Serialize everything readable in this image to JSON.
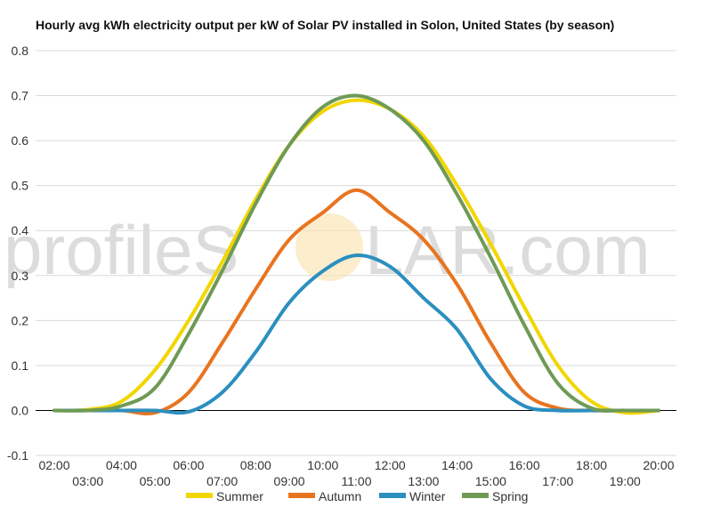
{
  "watermark": {
    "left_text": "profileS",
    "right_text": "LAR.com"
  },
  "chart_data": {
    "type": "line",
    "title": "Hourly avg kWh electricity output per kW of Solar PV installed in Solon, United States (by season)",
    "xlabel": "",
    "ylabel": "",
    "ylim": [
      -0.1,
      0.8
    ],
    "yticks": [
      "-0.1",
      "0.0",
      "0.1",
      "0.2",
      "0.3",
      "0.4",
      "0.5",
      "0.6",
      "0.7",
      "0.8"
    ],
    "x": [
      "02:00",
      "03:00",
      "04:00",
      "05:00",
      "06:00",
      "07:00",
      "08:00",
      "09:00",
      "10:00",
      "11:00",
      "12:00",
      "13:00",
      "14:00",
      "15:00",
      "16:00",
      "17:00",
      "18:00",
      "19:00",
      "20:00"
    ],
    "grid": true,
    "legend_position": "bottom",
    "series": [
      {
        "name": "Summer",
        "color": "#f2d600",
        "values": [
          0,
          0.002,
          0.02,
          0.09,
          0.2,
          0.33,
          0.47,
          0.59,
          0.665,
          0.69,
          0.67,
          0.61,
          0.5,
          0.37,
          0.23,
          0.1,
          0.02,
          -0.005,
          0
        ]
      },
      {
        "name": "Autumn",
        "color": "#e8741f",
        "values": [
          0,
          0,
          0,
          -0.005,
          0.04,
          0.15,
          0.27,
          0.38,
          0.44,
          0.49,
          0.44,
          0.38,
          0.28,
          0.15,
          0.04,
          0.005,
          0,
          0,
          0
        ]
      },
      {
        "name": "Winter",
        "color": "#2b8fbf",
        "values": [
          0,
          0,
          0,
          0,
          -0.003,
          0.04,
          0.13,
          0.24,
          0.31,
          0.345,
          0.32,
          0.25,
          0.18,
          0.07,
          0.01,
          0,
          0,
          0,
          0
        ]
      },
      {
        "name": "Spring",
        "color": "#6e9a55",
        "values": [
          0,
          0,
          0.01,
          0.05,
          0.17,
          0.31,
          0.46,
          0.59,
          0.675,
          0.7,
          0.67,
          0.6,
          0.48,
          0.34,
          0.19,
          0.06,
          0.005,
          0,
          0
        ]
      }
    ]
  }
}
